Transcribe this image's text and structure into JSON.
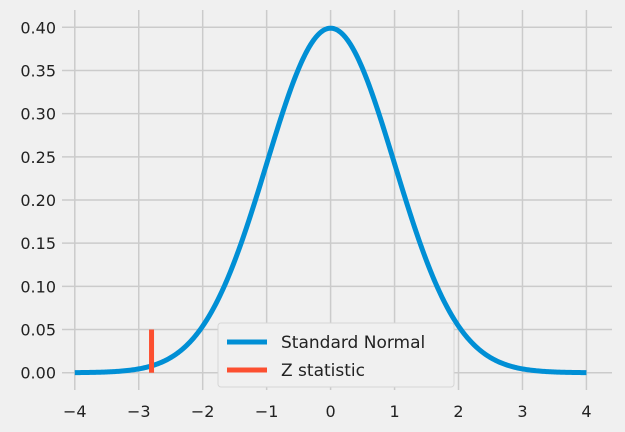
{
  "chart_data": {
    "type": "line",
    "title": "",
    "xlabel": "",
    "ylabel": "",
    "xlim": [
      -4.2,
      4.4
    ],
    "ylim": [
      -0.02,
      0.42
    ],
    "x_ticks": [
      -4,
      -3,
      -2,
      -1,
      0,
      1,
      2,
      3,
      4
    ],
    "x_tick_labels": [
      "−4",
      "−3",
      "−2",
      "−1",
      "0",
      "1",
      "2",
      "3",
      "4"
    ],
    "y_ticks": [
      0.0,
      0.05,
      0.1,
      0.15,
      0.2,
      0.25,
      0.3,
      0.35,
      0.4
    ],
    "y_tick_labels": [
      "0.00",
      "0.05",
      "0.10",
      "0.15",
      "0.20",
      "0.25",
      "0.30",
      "0.35",
      "0.40"
    ],
    "grid": true,
    "legend_position": "bottom-center",
    "series": [
      {
        "name": "Standard Normal",
        "color": "#008fd5",
        "x": [
          -4,
          -3.5,
          -3,
          -2.5,
          -2,
          -1.5,
          -1,
          -0.5,
          0,
          0.5,
          1,
          1.5,
          2,
          2.5,
          3,
          3.5,
          4
        ],
        "y": [
          0.0001,
          0.0009,
          0.0044,
          0.0175,
          0.054,
          0.1295,
          0.242,
          0.3521,
          0.3989,
          0.3521,
          0.242,
          0.1295,
          0.054,
          0.0175,
          0.0044,
          0.0009,
          0.0001
        ]
      },
      {
        "name": "Z statistic",
        "color": "#fc4f30",
        "x": [
          -2.8,
          -2.8
        ],
        "y": [
          0,
          0.05
        ]
      }
    ]
  }
}
